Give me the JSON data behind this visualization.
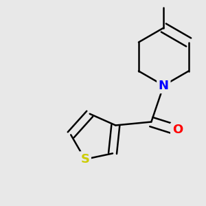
{
  "background_color": "#e8e8e8",
  "bond_color": "#000000",
  "bond_width": 1.8,
  "atom_colors": {
    "N": "#0000ff",
    "O": "#ff0000",
    "S": "#cccc00",
    "C": "#000000"
  },
  "font_size": 12,
  "figsize": [
    3.0,
    3.0
  ],
  "dpi": 100
}
